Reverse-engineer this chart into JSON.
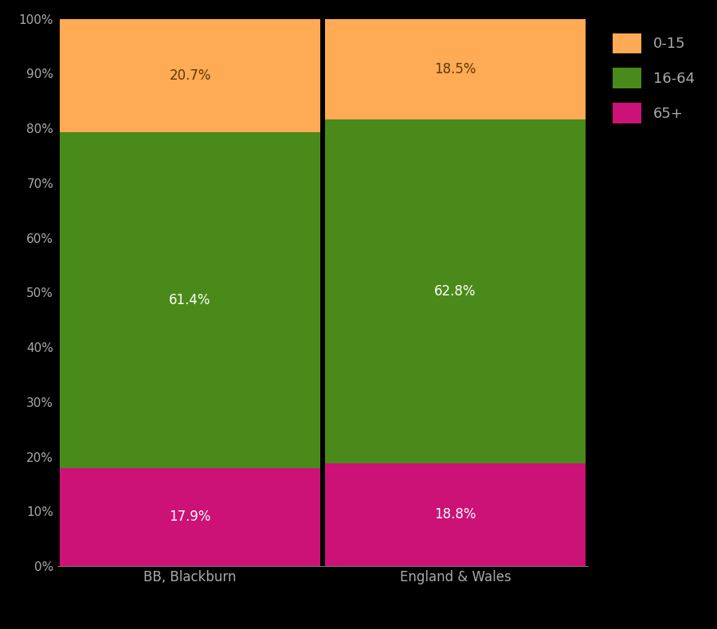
{
  "categories": [
    "BB, Blackburn",
    "England & Wales"
  ],
  "age_groups": [
    "65+",
    "16-64",
    "0-15"
  ],
  "values": {
    "BB, Blackburn": [
      17.9,
      61.4,
      20.7
    ],
    "England & Wales": [
      18.8,
      62.8,
      18.5
    ]
  },
  "colors": [
    "#CC1177",
    "#4A8A1A",
    "#FFAA55"
  ],
  "label_colors": [
    "white",
    "white",
    "#5a3a00"
  ],
  "background_color": "#000000",
  "plot_bg_color": "#000000",
  "tick_color": "#aaaaaa",
  "legend_labels": [
    "0-15",
    "16-64",
    "65+"
  ],
  "legend_colors": [
    "#FFAA55",
    "#4A8A1A",
    "#CC1177"
  ],
  "bar_width": 0.98,
  "figsize": [
    9.0,
    7.9
  ],
  "dpi": 100
}
